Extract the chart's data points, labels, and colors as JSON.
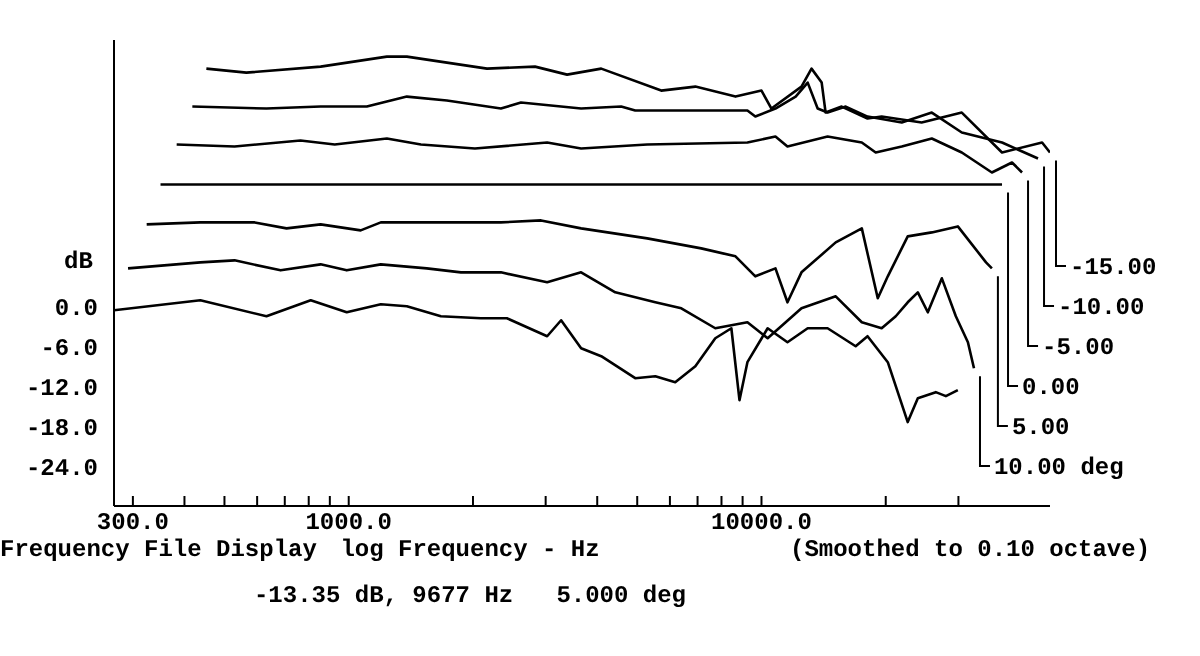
{
  "chart_data": {
    "type": "line",
    "xlabel": "log Frequency - Hz",
    "ylabel": "dB",
    "annotations": [
      "Frequency File Display",
      "(Smoothed to 0.10 octave)",
      "-13.35 dB, 9677 Hz   5.000 deg"
    ],
    "log": "x",
    "grid": false,
    "legend": false,
    "marker": "none",
    "line_style": "solid",
    "xlim": [
      270,
      50000
    ],
    "ylim": [
      -30,
      40
    ],
    "xticks": [
      {
        "value": 300,
        "label": "300.0"
      },
      {
        "value": 400,
        "label": null
      },
      {
        "value": 500,
        "label": null
      },
      {
        "value": 600,
        "label": null
      },
      {
        "value": 700,
        "label": null
      },
      {
        "value": 800,
        "label": null
      },
      {
        "value": 900,
        "label": null
      },
      {
        "value": 1000,
        "label": "1000.0"
      },
      {
        "value": 2000,
        "label": null
      },
      {
        "value": 3000,
        "label": null
      },
      {
        "value": 4000,
        "label": null
      },
      {
        "value": 5000,
        "label": null
      },
      {
        "value": 6000,
        "label": null
      },
      {
        "value": 7000,
        "label": null
      },
      {
        "value": 8000,
        "label": null
      },
      {
        "value": 9000,
        "label": null
      },
      {
        "value": 10000,
        "label": "10000.0"
      },
      {
        "value": 20000,
        "label": null
      },
      {
        "value": 30000,
        "label": null
      }
    ],
    "yticks": [
      {
        "value": 0,
        "label": "0.0"
      },
      {
        "value": -6,
        "label": "-6.0"
      },
      {
        "value": -12,
        "label": "-12.0"
      },
      {
        "value": -18,
        "label": "-18.0"
      },
      {
        "value": -24,
        "label": "-24.0"
      }
    ],
    "series": [
      {
        "color": "#000000",
        "x": [
          270,
          437,
          632,
          809,
          989,
          1196,
          1383,
          1672,
          2090,
          2417,
          3025,
          3270,
          3656,
          4090,
          4944,
          5531,
          6181,
          6915,
          7729,
          8453,
          8845,
          9245,
          10350,
          11560,
          12940,
          14460,
          16910,
          18070,
          20230,
          22610,
          23920,
          26440,
          27970,
          29900
        ],
        "values": [
          -0.6,
          0.9,
          -1.5,
          0.9,
          -0.9,
          0.3,
          0,
          -1.5,
          -1.8,
          -1.8,
          -4.5,
          -2.1,
          -6.3,
          -7.5,
          -10.8,
          -10.5,
          -11.4,
          -9,
          -4.8,
          -3.3,
          -14.1,
          -8.4,
          -3.3,
          -5.4,
          -3.3,
          -3.3,
          -6,
          -4.5,
          -8.4,
          -17.4,
          -13.8,
          -12.9,
          -13.5,
          -12.6
        ]
      },
      {
        "name": "10.00 deg",
        "color": "#000000",
        "x": [
          292,
          437,
          529,
          684,
          855,
          989,
          1196,
          1546,
          1870,
          2337,
          3025,
          3656,
          4424,
          5531,
          6394,
          7729,
          9245,
          10350,
          12500,
          15130,
          17500,
          19550,
          21150,
          22610,
          23920,
          25290,
          27350,
          29570,
          31630,
          32720
        ],
        "values": [
          5.7,
          6.6,
          6.9,
          5.4,
          6.3,
          5.4,
          6.3,
          5.7,
          5.1,
          5.1,
          3.6,
          5.1,
          2.1,
          0.6,
          -0.3,
          -3.3,
          -2.4,
          -4.8,
          -0.3,
          1.5,
          -2.4,
          -3.3,
          -1.5,
          0.6,
          2.1,
          -0.9,
          4.2,
          -1.5,
          -5.4,
          -9.3
        ]
      },
      {
        "name": "5.00",
        "color": "#000000",
        "x": [
          324,
          437,
          592,
          707,
          855,
          1069,
          1196,
          1729,
          2337,
          2924,
          3656,
          5286,
          7145,
          8650,
          9663,
          10810,
          11560,
          12500,
          15130,
          17500,
          19130,
          20230,
          22610,
          25860,
          29900,
          34990,
          36160
        ],
        "values": [
          12.3,
          12.6,
          12.6,
          11.7,
          12.3,
          11.4,
          12.6,
          12.6,
          12.6,
          12.9,
          11.7,
          10.2,
          8.7,
          7.5,
          4.5,
          5.7,
          0.6,
          5.1,
          9.6,
          11.7,
          1.2,
          4.5,
          10.5,
          11.1,
          12,
          6.6,
          5.7
        ]
      },
      {
        "name": "0.00",
        "color": "#000000",
        "x": [
          350,
          38260
        ],
        "values": [
          18.3,
          18.3
        ]
      },
      {
        "name": "-5.00",
        "color": "#000000",
        "x": [
          383,
          529,
          764,
          925,
          1237,
          1496,
          2022,
          3025,
          3656,
          5286,
          9245,
          10810,
          11560,
          14460,
          17500,
          18910,
          21870,
          25860,
          30570,
          36160,
          40450,
          42780
        ],
        "values": [
          24.3,
          24,
          24.9,
          24.3,
          25.2,
          24.3,
          23.7,
          24.6,
          23.7,
          24.3,
          24.6,
          25.5,
          24,
          25.5,
          24.6,
          23.1,
          24,
          25.2,
          23.1,
          20.1,
          21.6,
          20.1
        ]
      },
      {
        "name": "-10.00",
        "color": "#000000",
        "x": [
          418,
          632,
          855,
          1106,
          1383,
          1729,
          2337,
          2614,
          3656,
          4571,
          4944,
          9245,
          9663,
          10810,
          12100,
          12940,
          13680,
          14460,
          16000,
          18070,
          21870,
          25860,
          30570,
          38260,
          46770
        ],
        "values": [
          30,
          29.7,
          30,
          30,
          31.5,
          30.9,
          29.7,
          30.6,
          29.7,
          30,
          29.4,
          29.4,
          28.5,
          29.7,
          31.5,
          33.6,
          29.7,
          29.1,
          30,
          28.5,
          27.6,
          29.1,
          26.1,
          24.6,
          22.2
        ]
      },
      {
        "name": "-15.00",
        "color": "#000000",
        "x": [
          452,
          565,
          855,
          1237,
          1383,
          2163,
          2827,
          3381,
          4090,
          5715,
          6915,
          8650,
          10000,
          10570,
          12500,
          13220,
          13990,
          14300,
          15640,
          18070,
          19550,
          24440,
          30570,
          38260,
          47840,
          50000
        ],
        "values": [
          35.7,
          35.1,
          36,
          37.5,
          37.5,
          35.7,
          36,
          34.8,
          35.7,
          32.4,
          33,
          31.5,
          32.4,
          29.7,
          33,
          35.7,
          33.6,
          29.1,
          30,
          28.2,
          28.5,
          27.6,
          29.1,
          23.1,
          24.6,
          23.1
        ]
      }
    ]
  }
}
